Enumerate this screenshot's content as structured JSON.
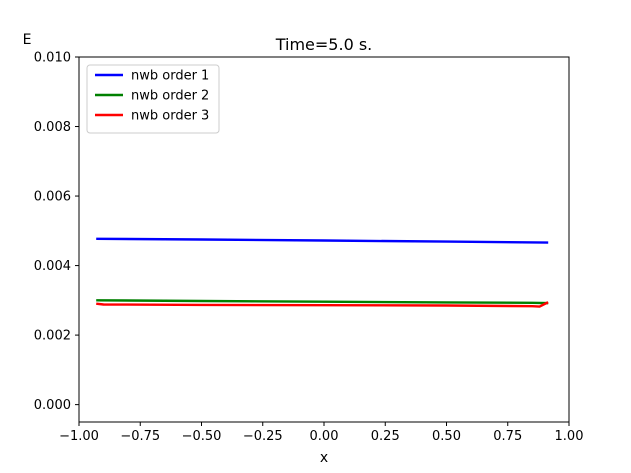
{
  "chart_data": {
    "type": "line",
    "title": "Time=5.0 s.",
    "xlabel": "x",
    "ylabel": "E",
    "xlim": [
      -1.0,
      1.0
    ],
    "ylim": [
      -0.0005,
      0.01
    ],
    "x_ticks": [
      -1.0,
      -0.75,
      -0.5,
      -0.25,
      0.0,
      0.25,
      0.5,
      0.75,
      1.0
    ],
    "x_tick_labels": [
      "−1.00",
      "−0.75",
      "−0.50",
      "−0.25",
      "0.00",
      "0.25",
      "0.50",
      "0.75",
      "1.00"
    ],
    "y_ticks": [
      0.0,
      0.002,
      0.004,
      0.006,
      0.008,
      0.01
    ],
    "y_tick_labels": [
      "0.000",
      "0.002",
      "0.004",
      "0.006",
      "0.008",
      "0.010"
    ],
    "grid": false,
    "legend_position": "upper-left",
    "series": [
      {
        "name": "nwb order 1",
        "color": "#0000ff",
        "x": [
          -0.925,
          -0.5,
          0.0,
          0.5,
          0.91
        ],
        "y": [
          0.00477,
          0.00475,
          0.00472,
          0.00469,
          0.00466
        ]
      },
      {
        "name": "nwb order 2",
        "color": "#008000",
        "x": [
          -0.925,
          -0.5,
          0.0,
          0.5,
          0.85,
          0.91
        ],
        "y": [
          0.003,
          0.00298,
          0.00296,
          0.00294,
          0.00293,
          0.00292
        ]
      },
      {
        "name": "nwb order 3",
        "color": "#ff0000",
        "x": [
          -0.925,
          -0.9,
          -0.5,
          0.0,
          0.5,
          0.85,
          0.88,
          0.91
        ],
        "y": [
          0.0029,
          0.00288,
          0.00287,
          0.00286,
          0.00285,
          0.00283,
          0.00282,
          0.00293
        ]
      }
    ]
  }
}
